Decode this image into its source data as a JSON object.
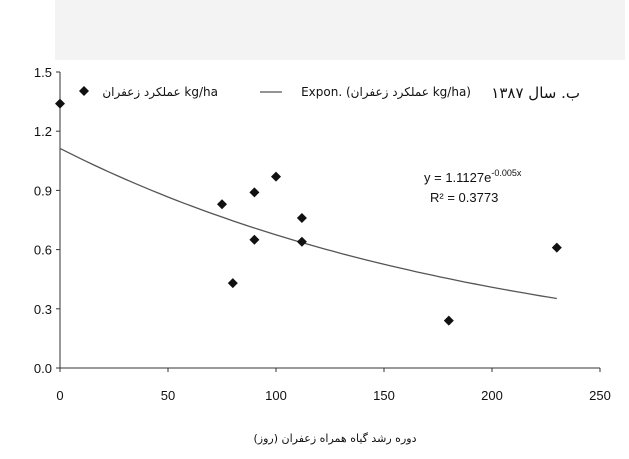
{
  "chart_data": {
    "type": "scatter",
    "title": "ب. سال ۱۳۸۷",
    "xlabel": "دوره رشد گیاه همراه زعفران (روز)",
    "ylabel": "",
    "xlim": [
      0,
      250
    ],
    "ylim": [
      0,
      1.5
    ],
    "x_ticks": [
      "0",
      "50",
      "100",
      "150",
      "200",
      "250"
    ],
    "y_ticks": [
      "0.0",
      "0.3",
      "0.6",
      "0.9",
      "1.2",
      "1.5"
    ],
    "grid": false,
    "legend_position": "top",
    "series": [
      {
        "name": "عملکرد زعفران kg/ha",
        "marker": "diamond",
        "color": "#111111",
        "points": [
          {
            "x": 0,
            "y": 1.34
          },
          {
            "x": 75,
            "y": 0.83
          },
          {
            "x": 80,
            "y": 0.43
          },
          {
            "x": 90,
            "y": 0.89
          },
          {
            "x": 90,
            "y": 0.65
          },
          {
            "x": 100,
            "y": 0.97
          },
          {
            "x": 112,
            "y": 0.76
          },
          {
            "x": 112,
            "y": 0.64
          },
          {
            "x": 180,
            "y": 0.24
          },
          {
            "x": 230,
            "y": 0.61
          }
        ]
      }
    ],
    "trendline": {
      "name": "Expon. (عملکرد زعفران kg/ha)",
      "type": "exponential",
      "a": 1.1127,
      "b": -0.005,
      "x_range": [
        0,
        230
      ],
      "color": "#555555"
    },
    "annotations": {
      "equation": "y = 1.1127e",
      "exponent": "-0.005x",
      "r2": "R² = 0.3773"
    }
  }
}
